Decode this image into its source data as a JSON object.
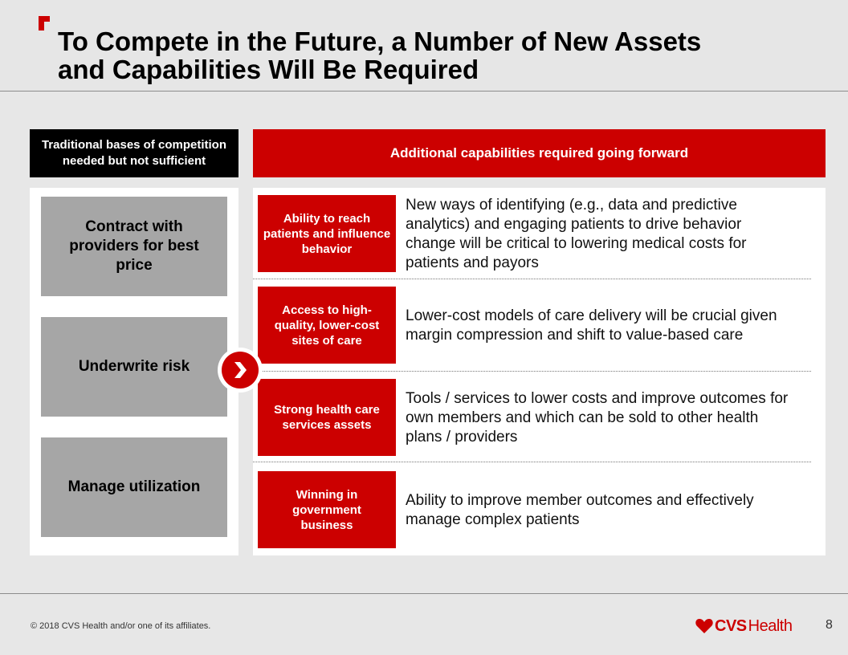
{
  "title": {
    "line1": "To Compete in the Future, a Number of New Assets",
    "line2": "and Capabilities Will Be Required"
  },
  "left_header": {
    "line1": "Traditional bases of competition",
    "line2": "needed but not sufficient"
  },
  "right_header": "Additional capabilities required going forward",
  "traditional": [
    {
      "lines": [
        "Contract with",
        "providers for best",
        "price"
      ]
    },
    {
      "lines": [
        "Underwrite risk"
      ]
    },
    {
      "lines": [
        "Manage utilization"
      ]
    }
  ],
  "capabilities": [
    {
      "label_lines": [
        "Ability to reach",
        "patients and influence",
        "behavior"
      ],
      "desc_lines": [
        "New ways of identifying (e.g., data and predictive",
        "analytics) and engaging patients to drive behavior",
        "change will be critical to lowering medical costs for",
        "patients and payors"
      ]
    },
    {
      "label_lines": [
        "Access to high-",
        "quality, lower-cost",
        "sites of care"
      ],
      "desc_lines": [
        "Lower-cost models of care delivery will be crucial given",
        "margin compression and shift to value-based care"
      ]
    },
    {
      "label_lines": [
        "Strong health care",
        "services assets"
      ],
      "desc_lines": [
        "Tools / services to lower costs and improve outcomes for",
        "own members and which can be sold to other health",
        "plans / providers"
      ]
    },
    {
      "label_lines": [
        "Winning in",
        "government",
        "business"
      ],
      "desc_lines": [
        "Ability to improve member outcomes and effectively",
        "manage complex patients"
      ]
    }
  ],
  "footer": {
    "copyright": "© 2018 CVS Health and/or one of its affiliates.",
    "brand_cvs": "CVS",
    "brand_health": "Health",
    "page_number": "8"
  },
  "colors": {
    "accent": "#cc0000",
    "header_bg": "#000000",
    "gray_box": "#a6a6a6",
    "background": "#e7e7e7"
  },
  "icons": {
    "logo_mark": "cvs-corner-mark-icon",
    "chevron": "chevron-right-icon",
    "brand_heart": "heart-icon"
  }
}
